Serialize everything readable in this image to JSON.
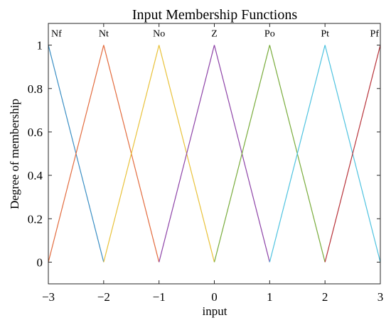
{
  "chart_data": {
    "type": "line",
    "title": "Input  Membership Functions",
    "xlabel": "input",
    "ylabel": "Degree of membership",
    "xlim": [
      -3,
      3
    ],
    "ylim": [
      -0.1,
      1.1
    ],
    "xticks": [
      -3,
      -2,
      -1,
      0,
      1,
      2,
      3
    ],
    "xtick_labels": [
      "−3",
      "−2",
      "−1",
      "0",
      "1",
      "2",
      "3"
    ],
    "yticks": [
      0,
      0.2,
      0.4,
      0.6,
      0.8,
      1
    ],
    "ytick_labels": [
      "0",
      "0.2",
      "0.4",
      "0.6",
      "0.8",
      "1"
    ],
    "grid": false,
    "series": [
      {
        "name": "Nf",
        "color": "#3b8fc4",
        "x": [
          -3,
          -3,
          -2
        ],
        "y": [
          1,
          1,
          0
        ]
      },
      {
        "name": "Nt",
        "color": "#e36c3f",
        "x": [
          -3,
          -2,
          -1
        ],
        "y": [
          0,
          1,
          0
        ]
      },
      {
        "name": "No",
        "color": "#e9c23a",
        "x": [
          -2,
          -1,
          0
        ],
        "y": [
          0,
          1,
          0
        ]
      },
      {
        "name": "Z",
        "color": "#8e44a8",
        "x": [
          -1,
          0,
          1
        ],
        "y": [
          0,
          1,
          0
        ]
      },
      {
        "name": "Po",
        "color": "#79ac3c",
        "x": [
          0,
          1,
          2
        ],
        "y": [
          0,
          1,
          0
        ]
      },
      {
        "name": "Pt",
        "color": "#4fc3e0",
        "x": [
          1,
          2,
          3
        ],
        "y": [
          0,
          1,
          0
        ]
      },
      {
        "name": "Pf",
        "color": "#b8333a",
        "x": [
          2,
          3,
          3
        ],
        "y": [
          0,
          1,
          1
        ]
      }
    ]
  }
}
